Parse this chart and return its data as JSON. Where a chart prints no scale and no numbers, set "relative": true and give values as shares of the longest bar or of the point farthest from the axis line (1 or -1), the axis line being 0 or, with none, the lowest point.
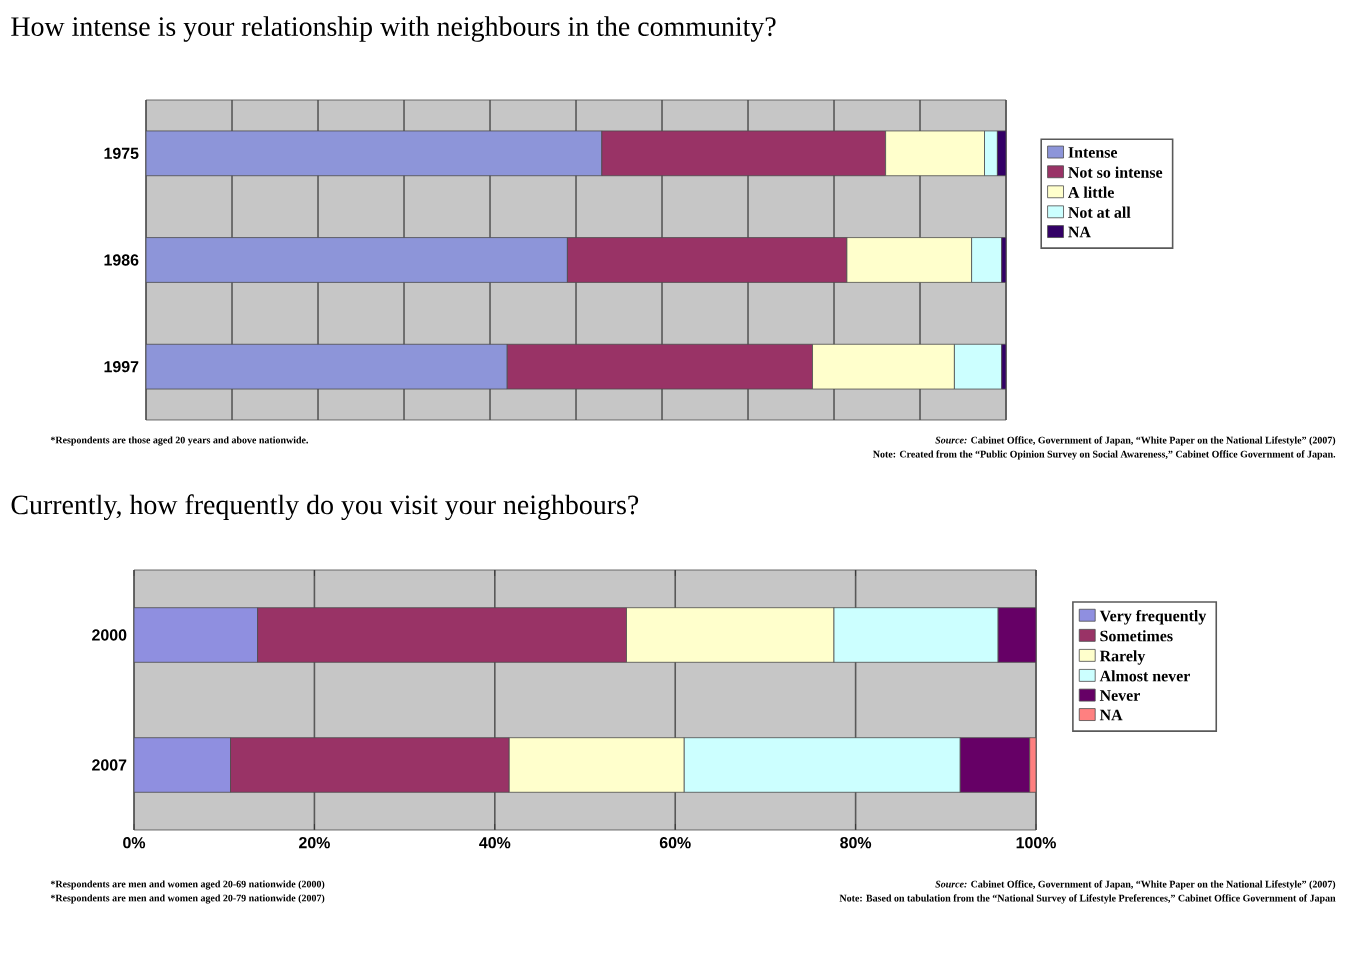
{
  "chart_data": [
    {
      "type": "bar",
      "orientation": "horizontal",
      "stacked": true,
      "relative": true,
      "title": "How intense is your relationship with neighbours in the community?",
      "categories": [
        "1975",
        "1986",
        "1997"
      ],
      "series": [
        {
          "name": "Intense",
          "color": "#8d95d9",
          "values": [
            0.53,
            0.49,
            0.42
          ]
        },
        {
          "name": "Not so intense",
          "color": "#993366",
          "values": [
            0.33,
            0.325,
            0.355
          ]
        },
        {
          "name": "A little",
          "color": "#ffffcc",
          "values": [
            0.115,
            0.145,
            0.165
          ]
        },
        {
          "name": "Not at all",
          "color": "#ccffff",
          "values": [
            0.015,
            0.035,
            0.055
          ]
        },
        {
          "name": "NA",
          "color": "#330066",
          "values": [
            0.01,
            0.005,
            0.005
          ]
        }
      ],
      "grid": "x",
      "legend": "right",
      "tick_labels": "y",
      "annotations": [
        "*Respondents are those aged 20 years and above nationwide.",
        "*Source:* Cabinet Office, Government of Japan, “White Paper on the National Lifestyle” (2007)",
        "Note: Created from the “Public Opinion Survey on Social Awareness,” Cabinet Office Government of Japan."
      ]
    },
    {
      "type": "bar",
      "orientation": "horizontal",
      "stacked": true,
      "title": "Currently, how frequently do you visit your neighbours?",
      "categories": [
        "2000",
        "2007"
      ],
      "series": [
        {
          "name": "Very frequently",
          "color": "#8f8fe0",
          "values": [
            13.7,
            10.7
          ]
        },
        {
          "name": "Sometimes",
          "color": "#993366",
          "values": [
            40.9,
            30.9
          ]
        },
        {
          "name": "Rarely",
          "color": "#ffffcc",
          "values": [
            23,
            19.4
          ]
        },
        {
          "name": "Almost never",
          "color": "#ccffff",
          "values": [
            18.2,
            30.6
          ]
        },
        {
          "name": "Never",
          "color": "#660066",
          "values": [
            4.2,
            7.7
          ]
        },
        {
          "name": "NA",
          "color": "#ff8080",
          "values": [
            0,
            0.7
          ]
        }
      ],
      "xlim": [
        0,
        100
      ],
      "xticks": [
        {
          "value": 0,
          "label": "0%"
        },
        {
          "value": 20,
          "label": "20%"
        },
        {
          "value": 40,
          "label": "40%"
        },
        {
          "value": 60,
          "label": "60%"
        },
        {
          "value": 80,
          "label": "80%"
        },
        {
          "value": 100,
          "label": "100%"
        }
      ],
      "grid": "x",
      "legend": "right",
      "annotations": [
        "*Respondents are men and women aged 20-69 nationwide (2000)",
        "*Respondents are men and women aged 20-79 nationwide (2007)",
        "*Source:* Cabinet Office, Government of Japan, “White Paper on the National Lifestyle” (2007)",
        "Note: Based on tabulation from the “National Survey of Lifestyle Preferences,” Cabinet Office Government of Japan"
      ]
    }
  ]
}
